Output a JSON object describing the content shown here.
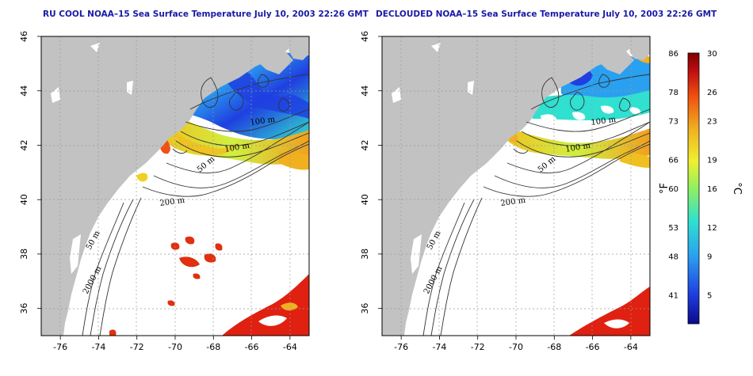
{
  "panels": [
    {
      "id": "rucool",
      "title": "RU COOL NOAA–15 Sea Surface Temperature July 10, 2003 22:26 GMT",
      "contour_labels": [
        "100 m",
        "100 m",
        "50 m",
        "200 m",
        "50 m",
        "2000 m"
      ]
    },
    {
      "id": "declouded",
      "title": "DECLOUDED NOAA–15 Sea Surface Temperature July 10, 2003 22:26 GMT",
      "contour_labels": [
        "100 m",
        "100 m",
        "50 m",
        "200 m",
        "50 m",
        "2000 m"
      ]
    }
  ],
  "axes": {
    "x_ticks": [
      "-76",
      "-74",
      "-72",
      "-70",
      "-68",
      "-66",
      "-64"
    ],
    "y_ticks": [
      "36",
      "38",
      "40",
      "42",
      "44",
      "46"
    ],
    "lon_range": [
      -77,
      -63
    ],
    "lat_range": [
      35,
      46
    ],
    "grid": "dotted"
  },
  "colorbar": {
    "fahrenheit_ticks": [
      "86",
      "78",
      "73",
      "66",
      "60",
      "53",
      "48",
      "41"
    ],
    "celsius_ticks": [
      "30",
      "26",
      "23",
      "19",
      "16",
      "12",
      "9",
      "5"
    ],
    "fahrenheit_unit": "°F",
    "celsius_unit": "°C",
    "celsius_range": [
      2,
      30
    ],
    "colors": [
      "#0a0a8a",
      "#1f3fe0",
      "#2aa0f0",
      "#30e0d0",
      "#90f060",
      "#f0f030",
      "#f0b020",
      "#f05010",
      "#c01010",
      "#800000"
    ]
  },
  "map_colors": {
    "land": "#c2c2c2",
    "ocean": "#ffffff",
    "warm_slope_water": "#e03010",
    "gulf_stream": "#e02010"
  }
}
